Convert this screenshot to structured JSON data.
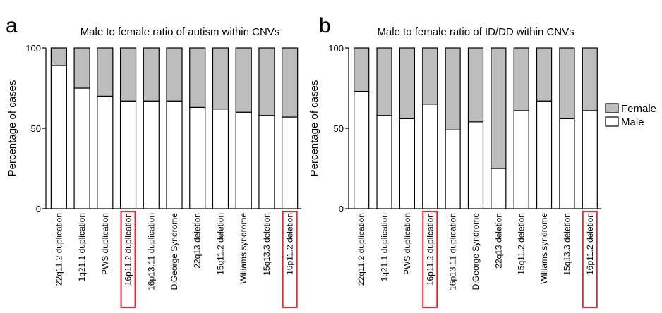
{
  "panels": [
    {
      "letter": "a"
    },
    {
      "letter": "b"
    }
  ],
  "chart_data": [
    {
      "type": "bar",
      "stacked": true,
      "title": "Male to female ratio of autism within CNVs",
      "ylabel": "Percentage of cases",
      "xlabel": "",
      "ylim": [
        0,
        100
      ],
      "yticks": [
        0,
        50,
        100
      ],
      "categories": [
        "22q11.2 duplication",
        "1q21.1 duplication",
        "PWS duplication",
        "16p11.2 duplication",
        "16p13.11 duplication",
        "DiGeorge Syndrome",
        "22q13 deletion",
        "15q11.2 deletion",
        "Williams syndrome",
        "15q13.3 deletion",
        "16p11.2 deletion"
      ],
      "highlighted": [
        "16p11.2 duplication",
        "16p11.2 deletion"
      ],
      "highlight_color": "#e0282e",
      "series": [
        {
          "name": "Male",
          "color": "#ffffff",
          "values": [
            89,
            75,
            70,
            67,
            67,
            67,
            63,
            62,
            60,
            58,
            57
          ]
        },
        {
          "name": "Female",
          "color": "#bdbdbd",
          "values": [
            11,
            25,
            30,
            33,
            33,
            33,
            37,
            38,
            40,
            42,
            43
          ]
        }
      ],
      "grid": false
    },
    {
      "type": "bar",
      "stacked": true,
      "title": "Male to female ratio of ID/DD within CNVs",
      "ylabel": "Percentage of cases",
      "xlabel": "",
      "ylim": [
        0,
        100
      ],
      "yticks": [
        0,
        50,
        100
      ],
      "categories": [
        "22q11.2 duplication",
        "1q21.1 duplication",
        "PWS duplication",
        "16p11.2 duplication",
        "16p13.11 duplication",
        "DiGeorge Syndrome",
        "22q13 deletion",
        "15q11.2 deletion",
        "Williams syndrome",
        "15q13.3 deletion",
        "16p11.2 deletion"
      ],
      "highlighted": [
        "16p11.2 duplication",
        "16p11.2 deletion"
      ],
      "highlight_color": "#e0282e",
      "series": [
        {
          "name": "Male",
          "color": "#ffffff",
          "values": [
            73,
            58,
            56,
            65,
            49,
            54,
            25,
            61,
            67,
            56,
            61
          ]
        },
        {
          "name": "Female",
          "color": "#bdbdbd",
          "values": [
            27,
            42,
            44,
            35,
            51,
            46,
            75,
            39,
            33,
            44,
            39
          ]
        }
      ],
      "legend": {
        "position": "right",
        "entries": [
          "Female",
          "Male"
        ]
      },
      "grid": false
    }
  ]
}
